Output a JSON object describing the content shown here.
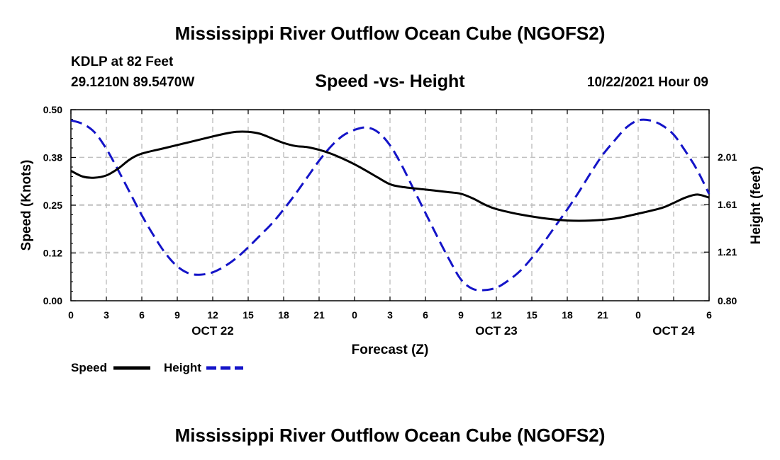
{
  "header": {
    "title": "Mississippi River Outflow Ocean Cube (NGOFS2)",
    "station": "KDLP at 82 Feet",
    "coords": "29.1210N  89.5470W",
    "subtitle": "Speed -vs- Height",
    "datetime": "10/22/2021 Hour 09"
  },
  "footer": {
    "title": "Mississippi River Outflow Ocean Cube (NGOFS2)"
  },
  "chart_data": {
    "type": "line",
    "title": "Speed -vs- Height",
    "xlabel": "Forecast (Z)",
    "ylabel_left": "Speed (Knots)",
    "ylabel_right": "Height (feet)",
    "x_range": [
      0,
      54
    ],
    "y_left_range": [
      0.0,
      0.5
    ],
    "y_right_range": [
      0.8,
      2.41
    ],
    "x_tick_values": [
      0,
      3,
      6,
      9,
      12,
      15,
      18,
      21,
      24,
      27,
      30,
      33,
      36,
      39,
      42,
      45,
      48,
      51,
      54
    ],
    "x_tick_labels": [
      "0",
      "3",
      "6",
      "9",
      "12",
      "15",
      "18",
      "21",
      "0",
      "3",
      "6",
      "9",
      "12",
      "15",
      "18",
      "21",
      "0",
      "6"
    ],
    "x_tick_label_positions": [
      0,
      3,
      6,
      9,
      12,
      15,
      18,
      21,
      24,
      27,
      30,
      33,
      36,
      39,
      42,
      45,
      48,
      54
    ],
    "date_labels": [
      {
        "text": "OCT 22",
        "x": 12
      },
      {
        "text": "OCT 23",
        "x": 36
      },
      {
        "text": "OCT 24",
        "x": 51
      }
    ],
    "y_left_ticks": [
      "0.00",
      "0.12",
      "0.25",
      "0.38",
      "0.50"
    ],
    "y_left_tick_values": [
      0.0,
      0.125,
      0.25,
      0.375,
      0.5
    ],
    "y_right_ticks": [
      "0.80",
      "1.21",
      "1.61",
      "2.01"
    ],
    "y_right_tick_values": [
      0.8,
      1.21,
      1.61,
      2.01
    ],
    "grid": true,
    "legend_position": "bottom-left",
    "series": [
      {
        "name": "Speed",
        "axis": "left",
        "color": "#000000",
        "style": "solid",
        "x": [
          0,
          1,
          2,
          3,
          4,
          5,
          6,
          8,
          10,
          12,
          13,
          14,
          15,
          16,
          17,
          18,
          19,
          20,
          21,
          22,
          23,
          24,
          25,
          26,
          27,
          28,
          30,
          32,
          33,
          34,
          35,
          36,
          38,
          40,
          42,
          44,
          46,
          48,
          50,
          51,
          52,
          53,
          54
        ],
        "values": [
          0.34,
          0.325,
          0.322,
          0.328,
          0.346,
          0.37,
          0.385,
          0.4,
          0.415,
          0.43,
          0.437,
          0.442,
          0.442,
          0.437,
          0.425,
          0.413,
          0.405,
          0.402,
          0.395,
          0.385,
          0.372,
          0.357,
          0.34,
          0.322,
          0.305,
          0.298,
          0.291,
          0.284,
          0.28,
          0.268,
          0.252,
          0.24,
          0.226,
          0.216,
          0.21,
          0.21,
          0.215,
          0.228,
          0.243,
          0.256,
          0.27,
          0.278,
          0.27
        ]
      },
      {
        "name": "Height",
        "axis": "right",
        "color": "#1414c8",
        "style": "dashed",
        "x": [
          0,
          1,
          2,
          3,
          4,
          5,
          6,
          7,
          8,
          9,
          10,
          11,
          12,
          13,
          14,
          15,
          16,
          17,
          18,
          19,
          20,
          21,
          22,
          23,
          24,
          25,
          26,
          27,
          28,
          29,
          30,
          31,
          32,
          33,
          34,
          35,
          36,
          37,
          38,
          39,
          40,
          41,
          42,
          43,
          44,
          45,
          46,
          47,
          48,
          49,
          50,
          51,
          52,
          53,
          54
        ],
        "values": [
          2.32,
          2.29,
          2.22,
          2.08,
          1.9,
          1.71,
          1.52,
          1.35,
          1.2,
          1.09,
          1.03,
          1.02,
          1.04,
          1.09,
          1.16,
          1.25,
          1.35,
          1.45,
          1.57,
          1.7,
          1.84,
          1.98,
          2.1,
          2.19,
          2.24,
          2.26,
          2.22,
          2.11,
          1.94,
          1.74,
          1.54,
          1.34,
          1.15,
          0.98,
          0.9,
          0.89,
          0.91,
          0.97,
          1.05,
          1.16,
          1.29,
          1.43,
          1.57,
          1.72,
          1.88,
          2.03,
          2.15,
          2.26,
          2.32,
          2.32,
          2.28,
          2.2,
          2.06,
          1.9,
          1.7
        ]
      }
    ]
  }
}
